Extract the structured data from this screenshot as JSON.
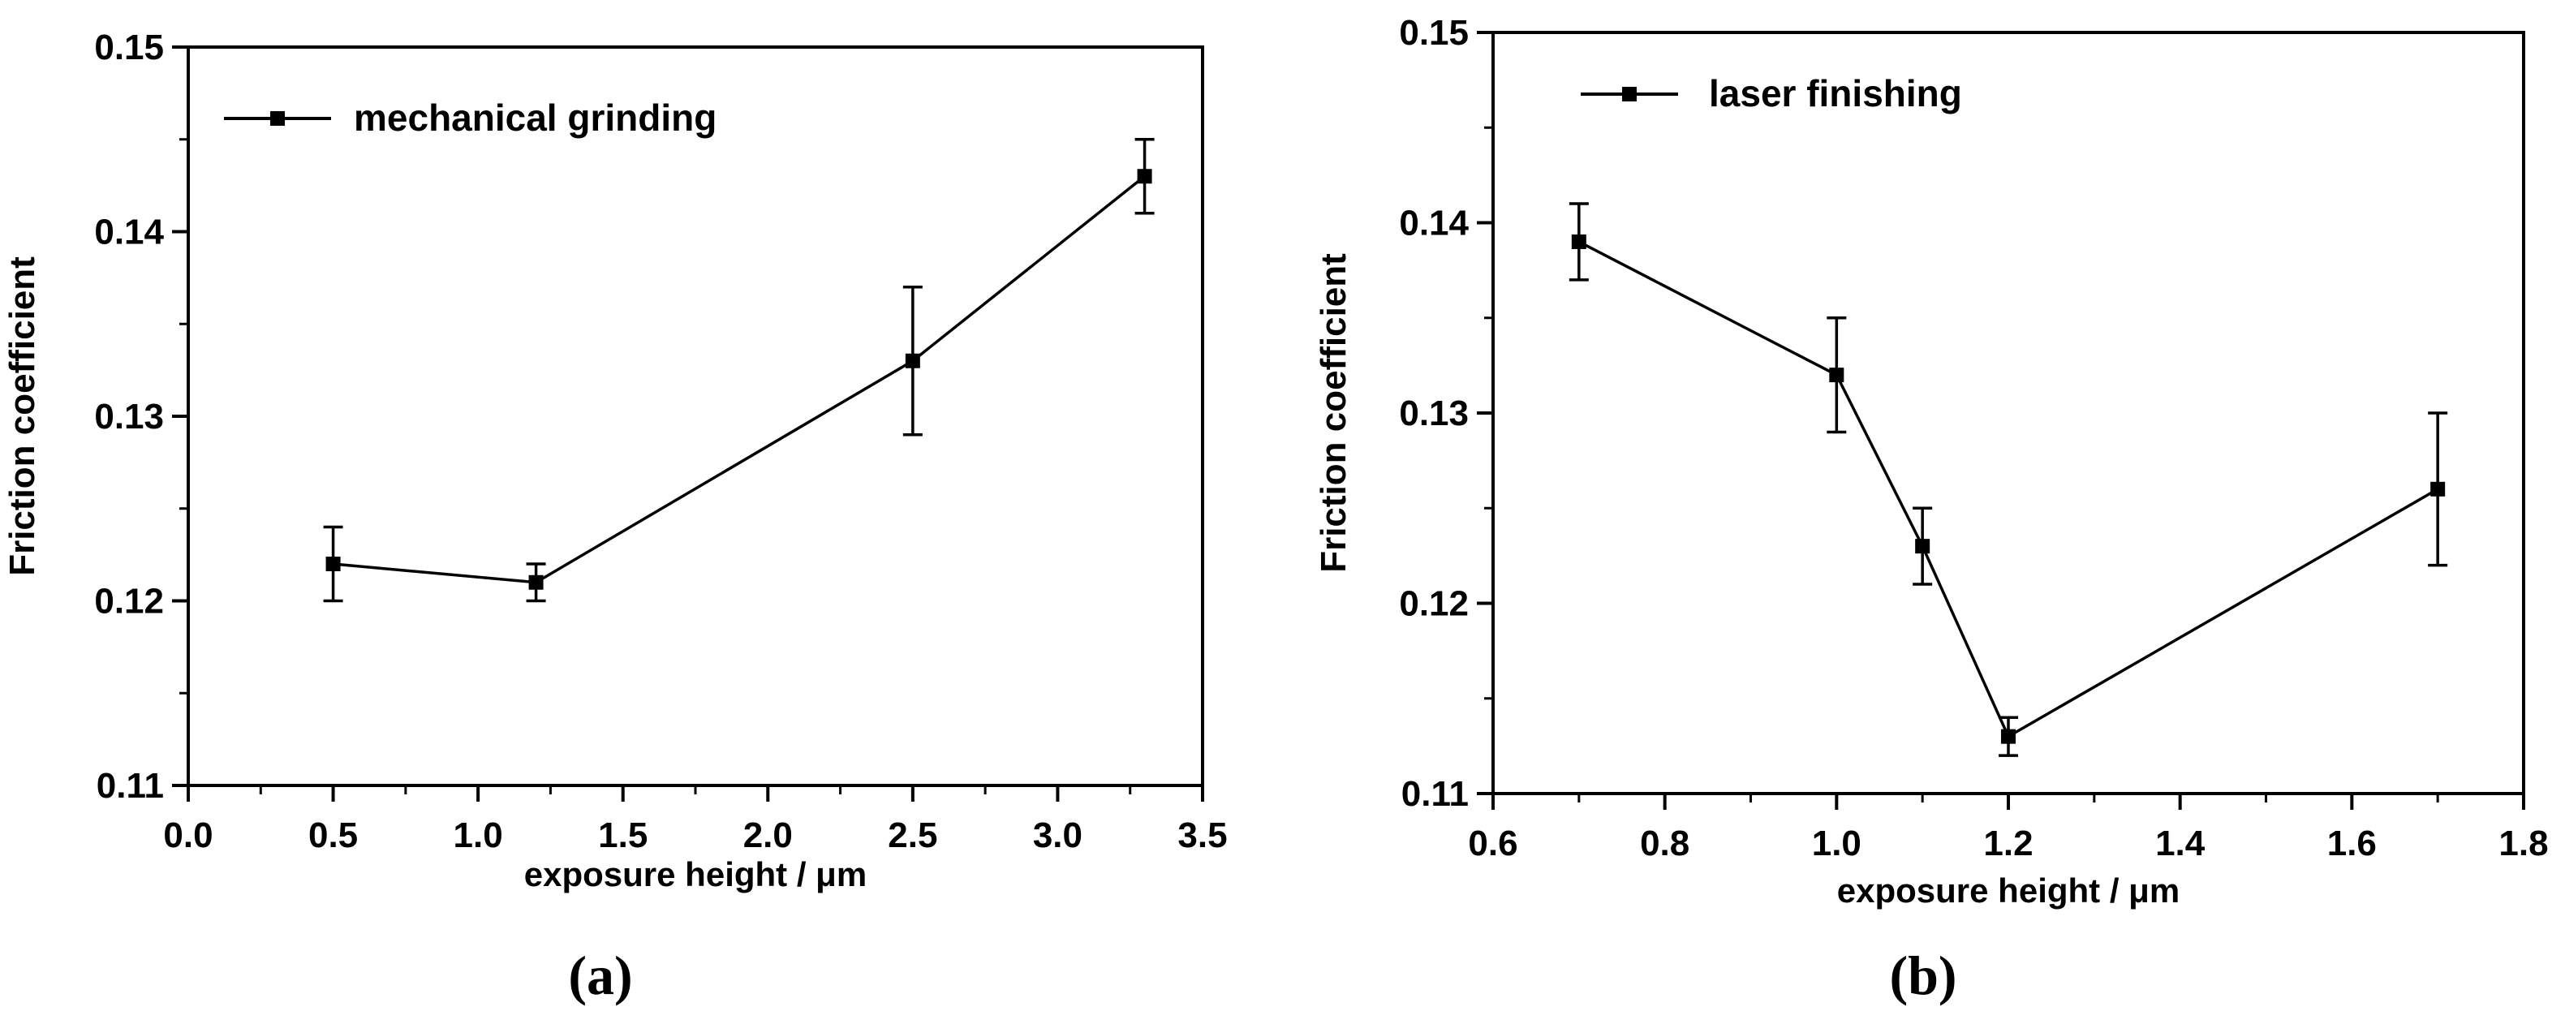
{
  "colors": {
    "background": "#ffffff",
    "ink": "#000000"
  },
  "chart_data": [
    {
      "panel_label": "(a)",
      "type": "line",
      "title": "",
      "xlabel": "exposure height / μm",
      "ylabel": "Friction coefficient",
      "xlim": [
        0.0,
        3.5
      ],
      "ylim": [
        0.11,
        0.15
      ],
      "x_ticks": [
        0.0,
        0.5,
        1.0,
        1.5,
        2.0,
        2.5,
        3.0,
        3.5
      ],
      "x_tick_labels": [
        "0.0",
        "0.5",
        "1.0",
        "1.5",
        "2.0",
        "2.5",
        "3.0",
        "3.5"
      ],
      "y_ticks": [
        0.11,
        0.12,
        0.13,
        0.14,
        0.15
      ],
      "y_tick_labels": [
        "0.11",
        "0.12",
        "0.13",
        "0.14",
        "0.15"
      ],
      "grid": false,
      "legend_position": "top-left",
      "series": [
        {
          "name": "mechanical grinding",
          "marker": "square",
          "x": [
            0.5,
            1.2,
            2.5,
            3.3
          ],
          "y": [
            0.122,
            0.121,
            0.133,
            0.143
          ],
          "error_low": [
            0.12,
            0.12,
            0.129,
            0.141
          ],
          "error_high": [
            0.124,
            0.122,
            0.137,
            0.145
          ]
        }
      ]
    },
    {
      "panel_label": "(b)",
      "type": "line",
      "title": "",
      "xlabel": "exposure height / μm",
      "ylabel": "Friction coefficient",
      "xlim": [
        0.6,
        1.8
      ],
      "ylim": [
        0.11,
        0.15
      ],
      "x_ticks": [
        0.6,
        0.8,
        1.0,
        1.2,
        1.4,
        1.6,
        1.8
      ],
      "x_tick_labels": [
        "0.6",
        "0.8",
        "1.0",
        "1.2",
        "1.4",
        "1.6",
        "1.8"
      ],
      "y_ticks": [
        0.11,
        0.12,
        0.13,
        0.14,
        0.15
      ],
      "y_tick_labels": [
        "0.11",
        "0.12",
        "0.13",
        "0.14",
        "0.15"
      ],
      "grid": false,
      "legend_position": "top-left",
      "series": [
        {
          "name": "laser finishing",
          "marker": "square",
          "x": [
            0.7,
            1.0,
            1.1,
            1.2,
            1.7
          ],
          "y": [
            0.139,
            0.132,
            0.123,
            0.113,
            0.126
          ],
          "error_low": [
            0.137,
            0.129,
            0.121,
            0.112,
            0.122
          ],
          "error_high": [
            0.141,
            0.135,
            0.125,
            0.114,
            0.13
          ]
        }
      ]
    }
  ]
}
